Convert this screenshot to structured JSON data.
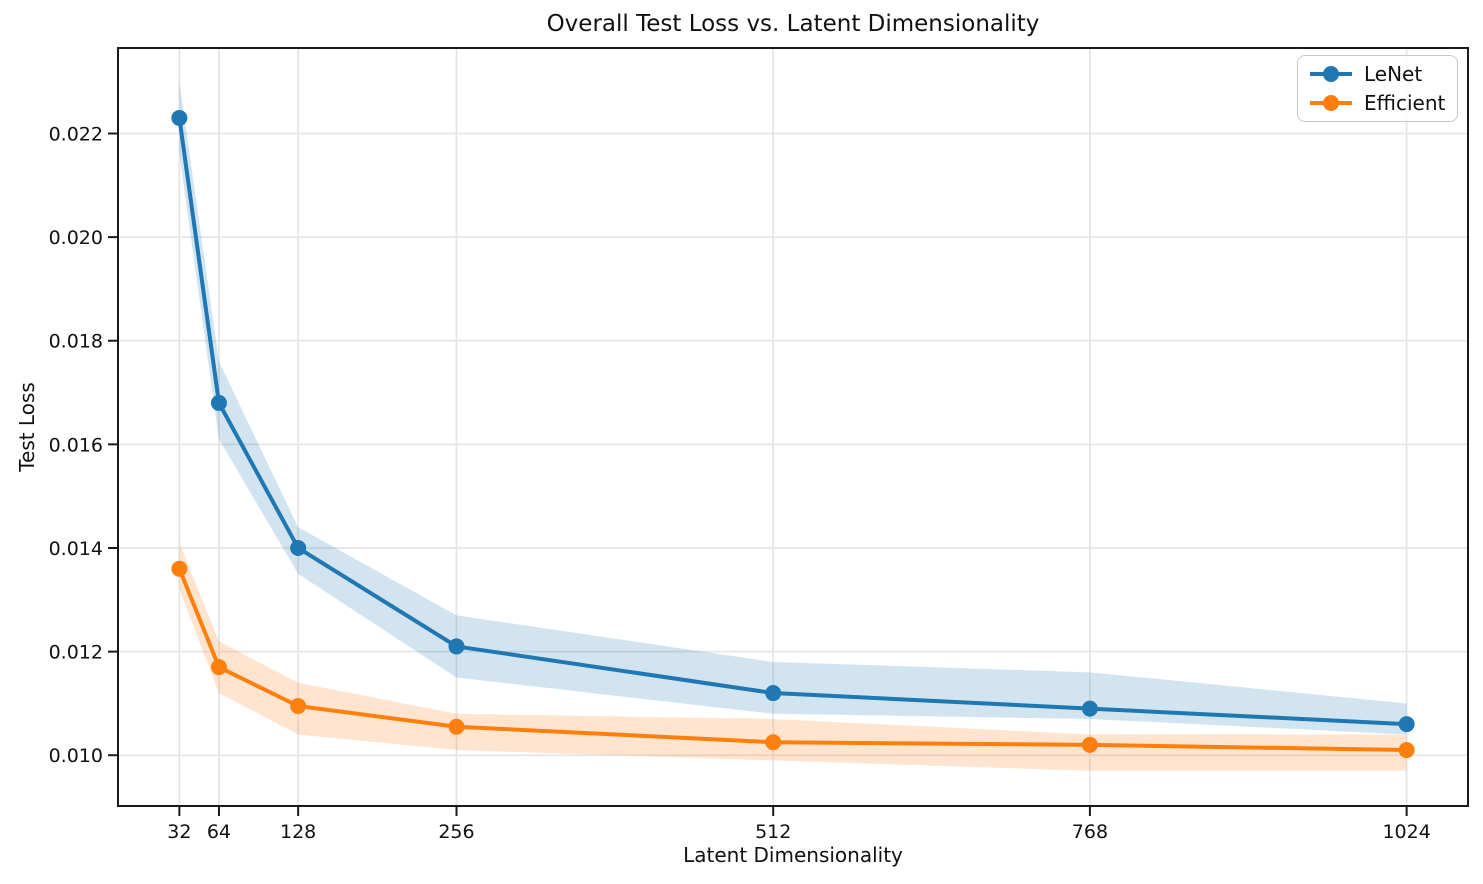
{
  "chart_data": {
    "type": "line",
    "title": "Overall Test Loss vs. Latent Dimensionality",
    "xlabel": "Latent Dimensionality",
    "ylabel": "Test Loss",
    "x": [
      32,
      64,
      128,
      256,
      512,
      768,
      1024
    ],
    "x_tick_labels": [
      "32",
      "64",
      "128",
      "256",
      "512",
      "768",
      "1024"
    ],
    "y_ticks": [
      0.01,
      0.012,
      0.014,
      0.016,
      0.018,
      0.02,
      0.022
    ],
    "y_tick_labels": [
      "0.010",
      "0.012",
      "0.014",
      "0.016",
      "0.018",
      "0.020",
      "0.022"
    ],
    "xlim": [
      -17.6,
      1073.6
    ],
    "ylim": [
      0.00902,
      0.02365
    ],
    "grid": true,
    "legend_position": "upper right",
    "band_alpha": 0.2,
    "axis_color": "#1a1a1a",
    "grid_color": "#e6e6e6",
    "background": "#ffffff",
    "series": [
      {
        "name": "LeNet",
        "color": "#1f77b4",
        "values": [
          0.0223,
          0.0168,
          0.014,
          0.0121,
          0.0112,
          0.0109,
          0.0106
        ],
        "band_upper": [
          0.023,
          0.0176,
          0.0144,
          0.0127,
          0.0118,
          0.0116,
          0.011
        ],
        "band_lower": [
          0.0216,
          0.0161,
          0.0135,
          0.0115,
          0.0108,
          0.0107,
          0.0104
        ]
      },
      {
        "name": "Efficient",
        "color": "#ff7f0e",
        "values": [
          0.0136,
          0.0117,
          0.01095,
          0.01055,
          0.01025,
          0.0102,
          0.0101
        ],
        "band_upper": [
          0.0141,
          0.0122,
          0.0114,
          0.0108,
          0.0107,
          0.0104,
          0.0104
        ],
        "band_lower": [
          0.0132,
          0.0112,
          0.0104,
          0.0101,
          0.0099,
          0.0097,
          0.0097
        ]
      }
    ]
  }
}
